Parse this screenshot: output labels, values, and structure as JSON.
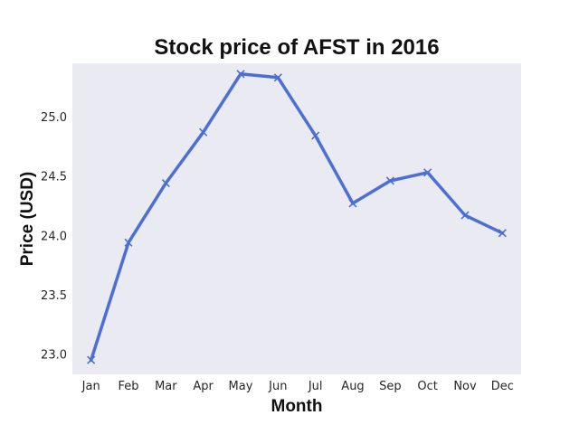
{
  "chart_data": {
    "type": "line",
    "title": "Stock price of AFST in 2016",
    "xlabel": "Month",
    "ylabel": "Price (USD)",
    "categories": [
      "Jan",
      "Feb",
      "Mar",
      "Apr",
      "May",
      "Jun",
      "Jul",
      "Aug",
      "Sep",
      "Oct",
      "Nov",
      "Dec"
    ],
    "series": [
      {
        "values": [
          22.95,
          23.94,
          24.44,
          24.87,
          25.36,
          25.33,
          24.84,
          24.27,
          24.46,
          24.53,
          24.17,
          24.02
        ],
        "color": "#4c6fd3",
        "marker": "x"
      }
    ],
    "ylim": [
      22.83,
      25.45
    ],
    "yticks": [
      "23.0",
      "23.5",
      "24.0",
      "24.5",
      "25.0"
    ],
    "grid": false,
    "plot_background": "#eaeaf2"
  }
}
